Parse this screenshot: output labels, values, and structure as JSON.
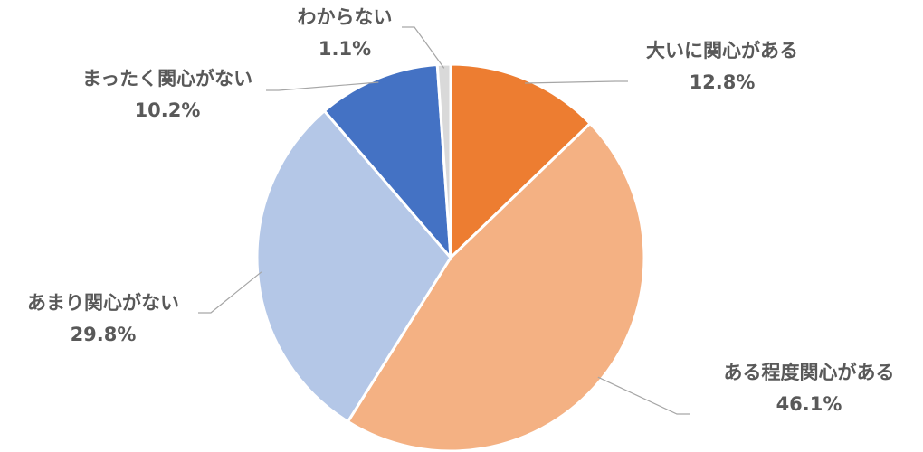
{
  "chart_data": {
    "type": "pie",
    "categories": [
      "大いに関心がある",
      "ある程度関心がある",
      "あまり関心がない",
      "まったく関心がない",
      "わからない"
    ],
    "values": [
      12.8,
      46.1,
      29.8,
      10.2,
      1.1
    ],
    "value_labels": [
      "12.8%",
      "46.1%",
      "29.8%",
      "10.2%",
      "1.1%"
    ],
    "colors": [
      "#ED7D31",
      "#F4B183",
      "#B4C7E7",
      "#4472C4",
      "#D9D9D9"
    ]
  }
}
